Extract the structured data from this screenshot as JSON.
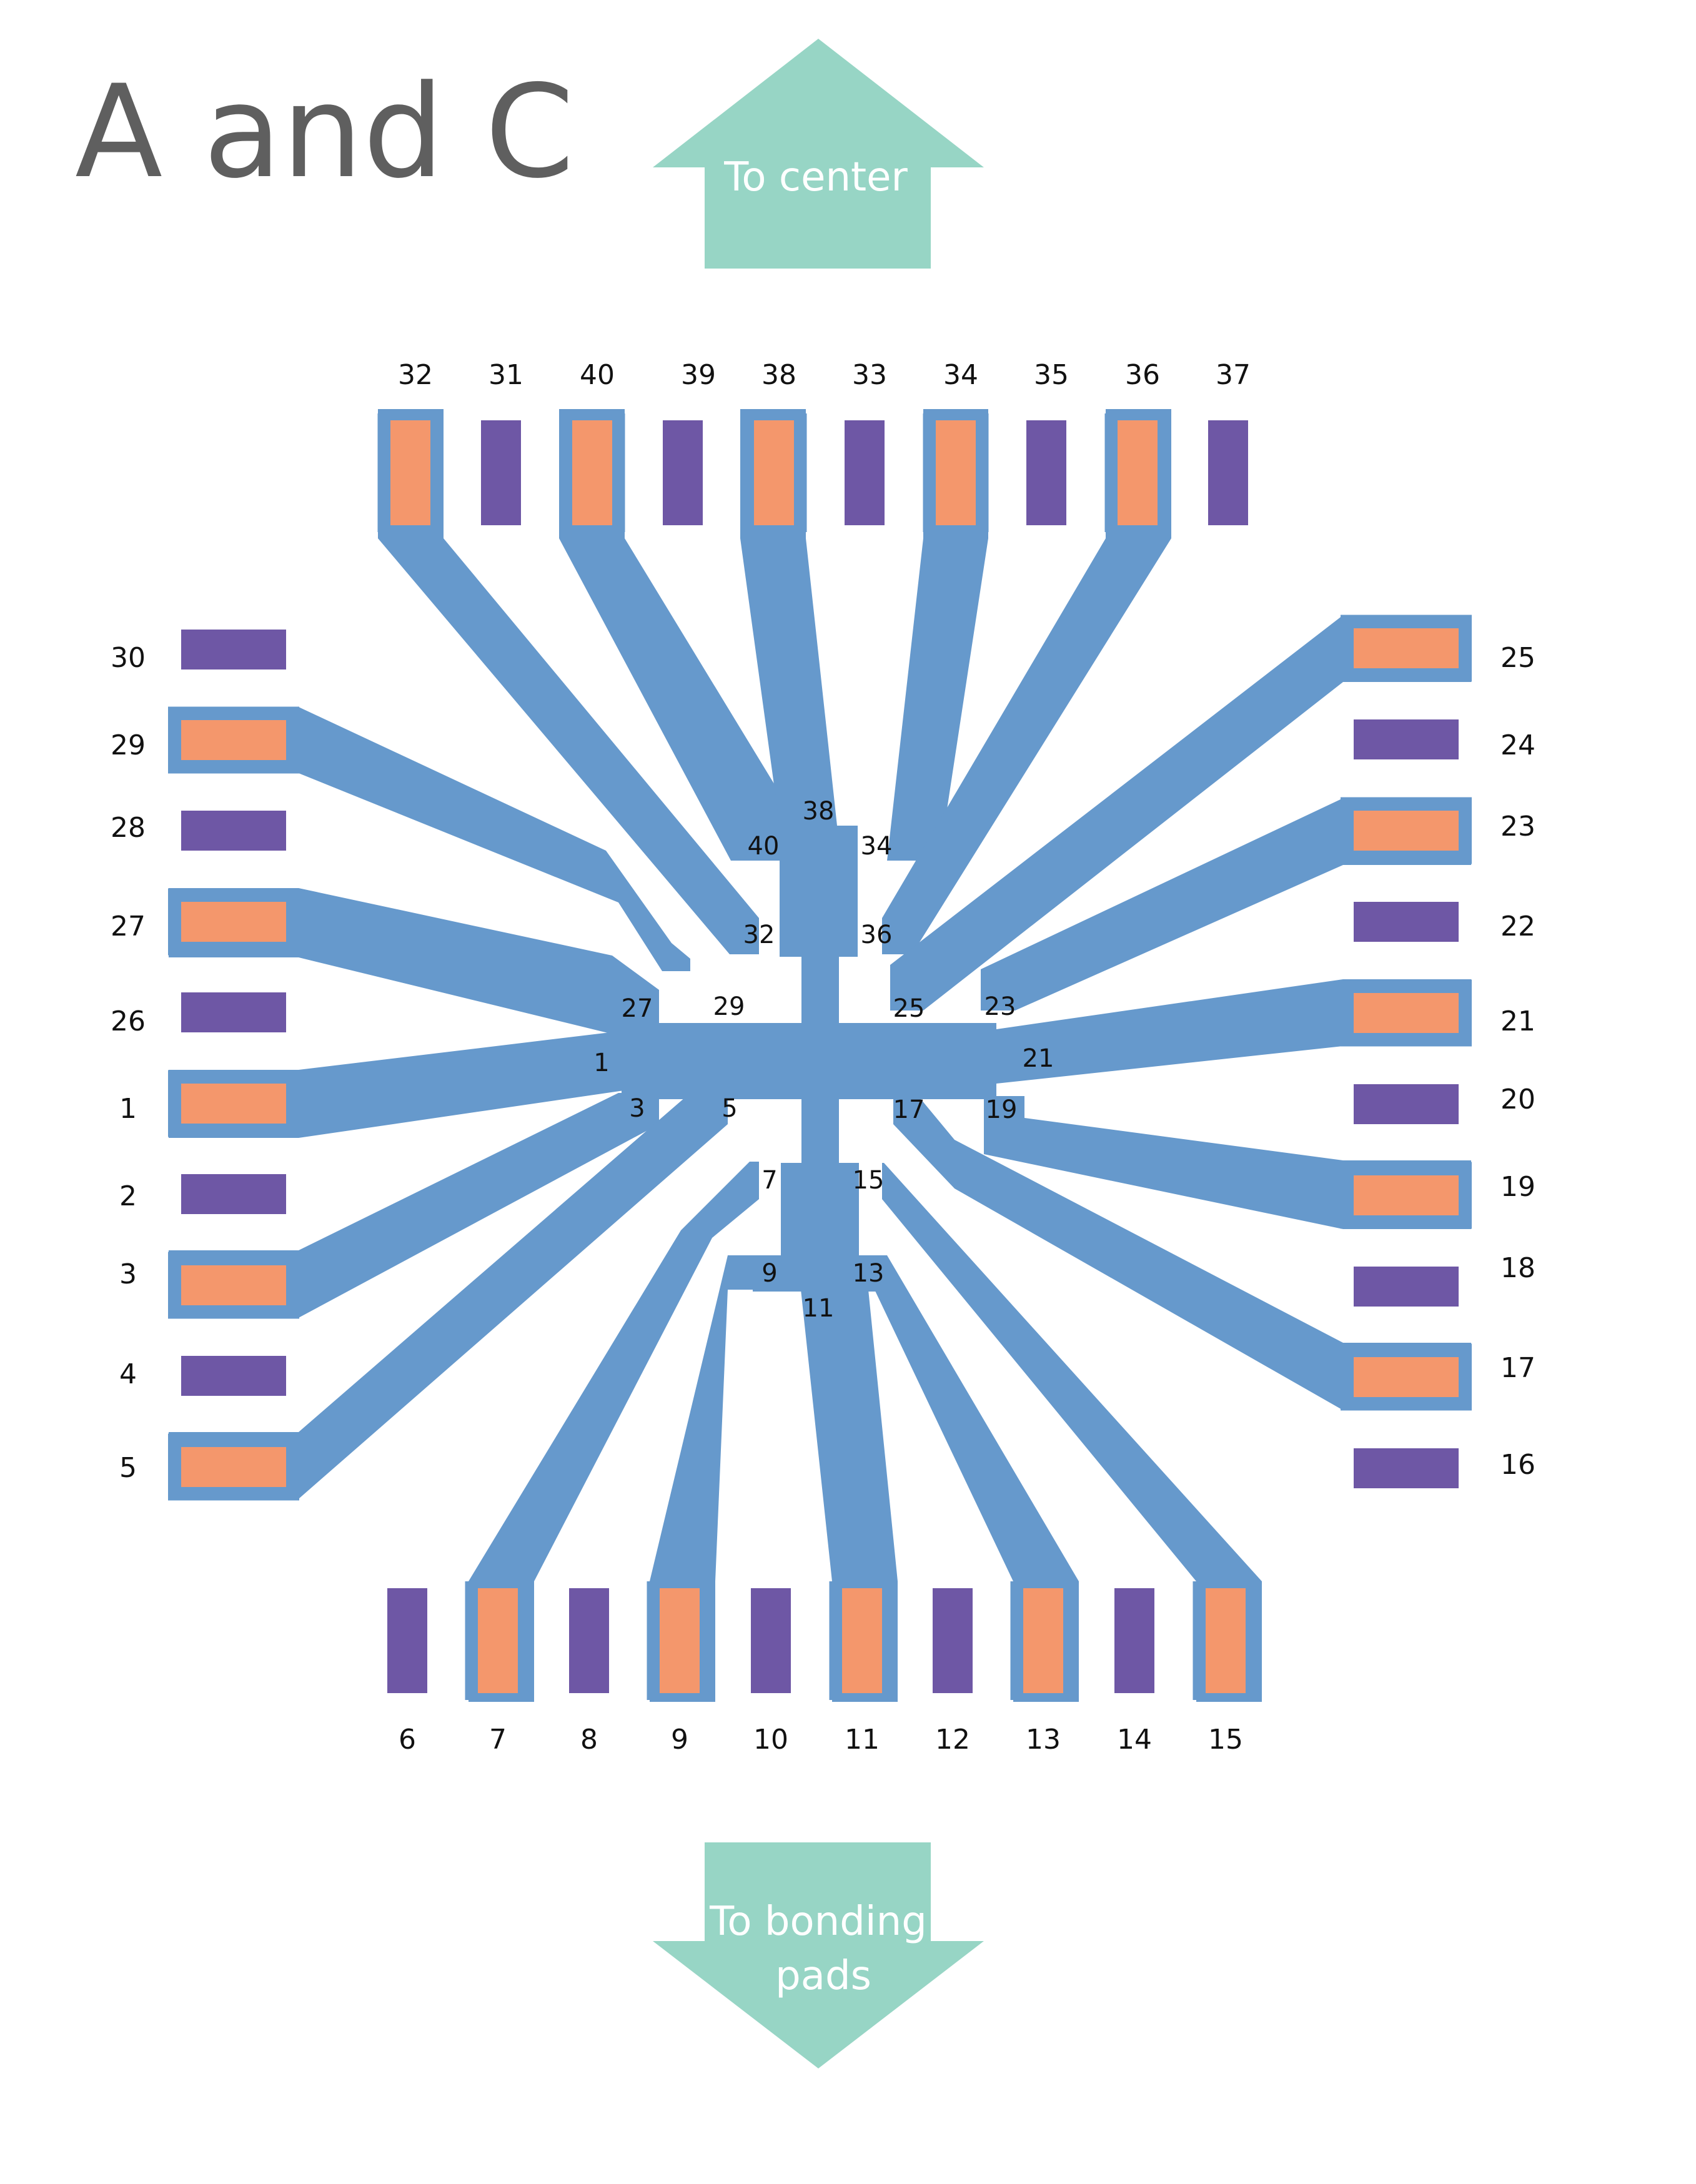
{
  "title": "A and C",
  "arrows": {
    "up_label": "To center",
    "down_label_line1": "To bonding",
    "down_label_line2": "pads"
  },
  "colors": {
    "trace": "#6699cc",
    "signal_pad": "#f4976c",
    "other_pad": "#6e57a5",
    "arrow": "#97d5c5",
    "title": "#5f5f5f",
    "label": "#111111"
  },
  "pads": {
    "top": [
      "32",
      "31",
      "40",
      "39",
      "38",
      "33",
      "34",
      "35",
      "36",
      "37"
    ],
    "top_connected": [
      true,
      false,
      true,
      false,
      true,
      false,
      true,
      false,
      true,
      false
    ],
    "bottom": [
      "6",
      "7",
      "8",
      "9",
      "10",
      "11",
      "12",
      "13",
      "14",
      "15"
    ],
    "bottom_connected": [
      false,
      true,
      false,
      true,
      false,
      true,
      false,
      true,
      false,
      true
    ],
    "left": [
      "30",
      "29",
      "28",
      "27",
      "26",
      "1",
      "2",
      "3",
      "4",
      "5"
    ],
    "left_connected": [
      false,
      true,
      false,
      true,
      false,
      true,
      false,
      true,
      false,
      true
    ],
    "right": [
      "25",
      "24",
      "23",
      "22",
      "21",
      "20",
      "19",
      "18",
      "17",
      "16"
    ],
    "right_connected": [
      true,
      false,
      true,
      false,
      true,
      false,
      true,
      false,
      true,
      false
    ]
  },
  "center_labels": [
    "38",
    "40",
    "34",
    "32",
    "36",
    "27",
    "29",
    "25",
    "23",
    "1",
    "21",
    "3",
    "5",
    "17",
    "19",
    "7",
    "15",
    "9",
    "13",
    "11"
  ]
}
